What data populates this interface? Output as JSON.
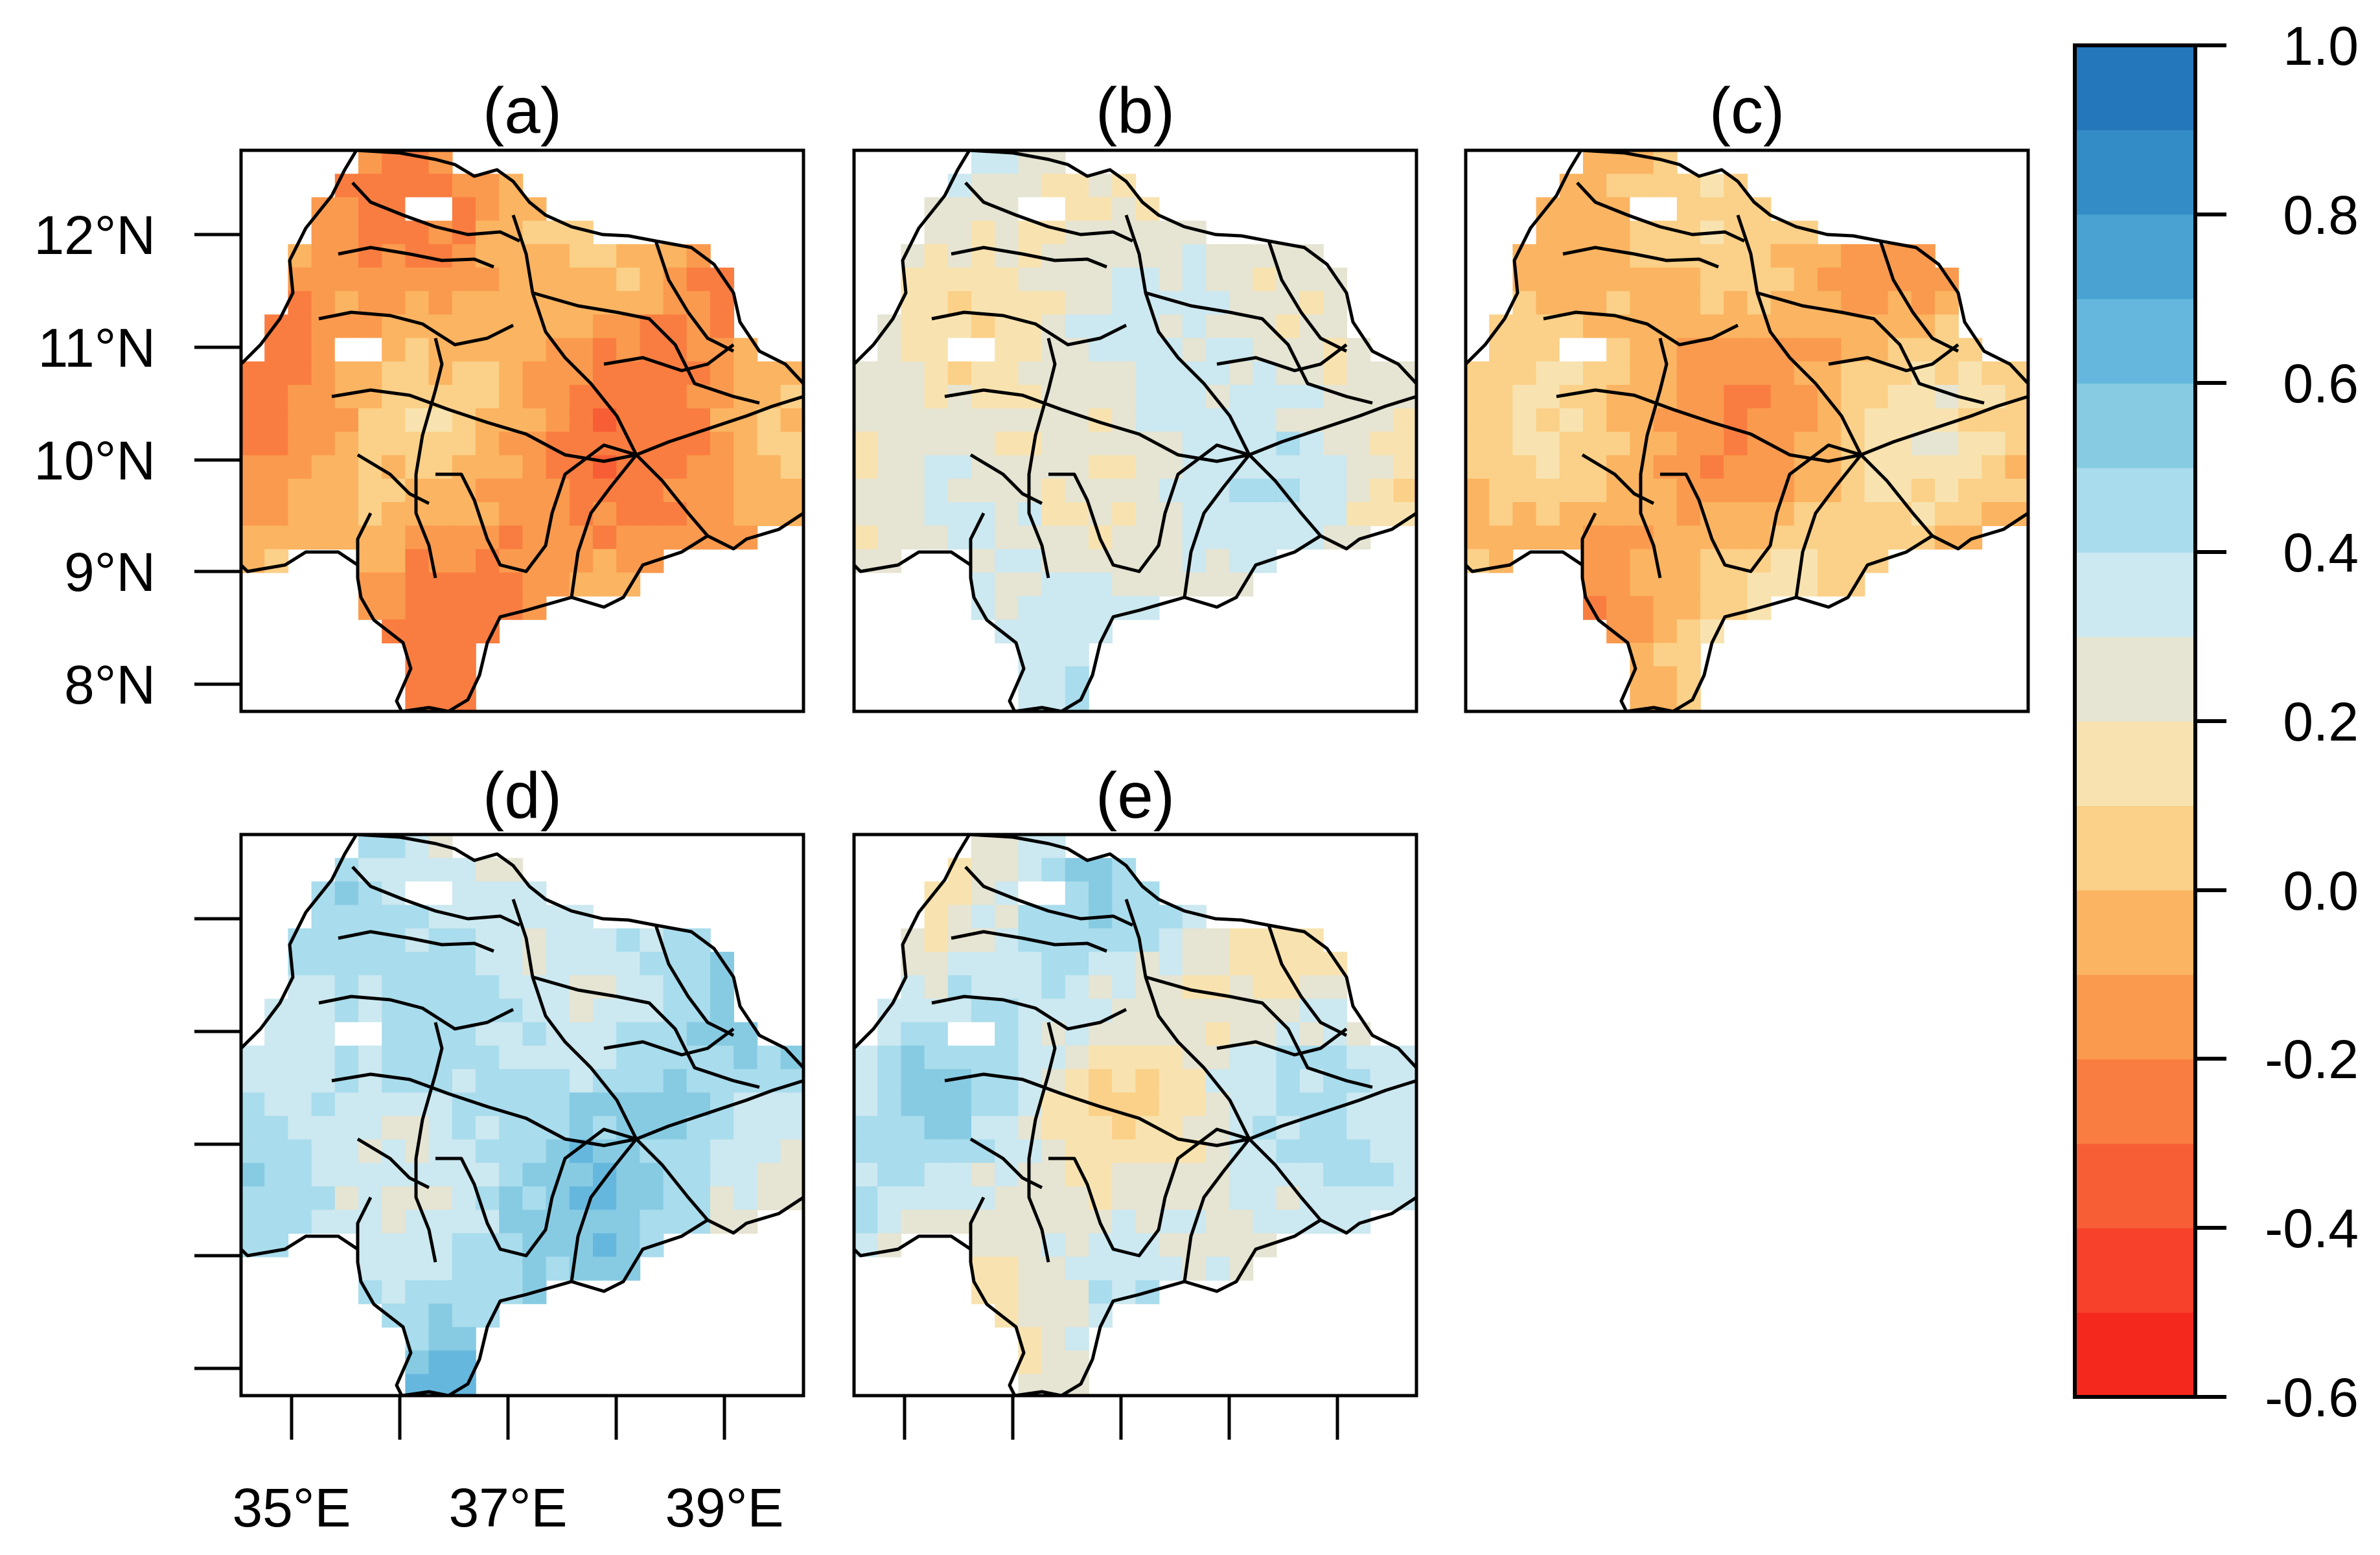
{
  "figure": {
    "panels": [
      {
        "id": "a",
        "label": "(a)",
        "mean": -0.12,
        "spread": 0.16,
        "seed": 11
      },
      {
        "id": "b",
        "label": "(b)",
        "mean": 0.26,
        "spread": 0.16,
        "seed": 23
      },
      {
        "id": "c",
        "label": "(c)",
        "mean": -0.02,
        "spread": 0.16,
        "seed": 37
      },
      {
        "id": "d",
        "label": "(d)",
        "mean": 0.42,
        "spread": 0.16,
        "seed": 41
      },
      {
        "id": "e",
        "label": "(e)",
        "mean": 0.3,
        "spread": 0.18,
        "seed": 53
      }
    ],
    "y_tick_labels": [
      "12°N",
      "11°N",
      "10°N",
      "9°N",
      "8°N"
    ],
    "x_tick_labels": [
      "35°E",
      "37°E",
      "39°E"
    ],
    "colorbar": {
      "tick_labels": [
        "1.0",
        "0.8",
        "0.6",
        "0.4",
        "0.2",
        "0.0",
        "-0.2",
        "-0.4",
        "-0.6"
      ],
      "min": -0.6,
      "max": 1.0,
      "step": 0.1,
      "colors": [
        "#f5281e",
        "#f7412a",
        "#f85e35",
        "#f97d40",
        "#fa9a4e",
        "#fbb461",
        "#fbd088",
        "#f8e3b0",
        "#e6e4d2",
        "#cce8f0",
        "#a9dcec",
        "#87cbe3",
        "#66b7dd",
        "#4aa2d3",
        "#348cc7",
        "#2477bb"
      ]
    }
  }
}
